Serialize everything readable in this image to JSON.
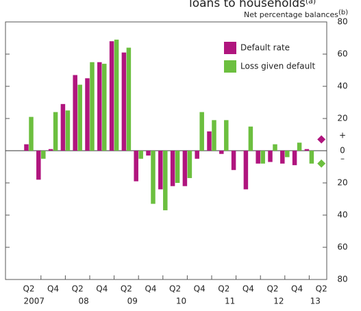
{
  "chart_data": {
    "type": "bar",
    "title": "loans to households",
    "title_note": "(a)",
    "y_label": "Net percentage balances",
    "y_label_note": "(b)",
    "sign_labels": [
      "+",
      "–"
    ],
    "categories": [
      "Q2",
      null,
      "Q4",
      null,
      "Q2",
      null,
      "Q4",
      null,
      "Q2",
      null,
      "Q4",
      null,
      "Q2",
      null,
      "Q4",
      null,
      "Q2",
      null,
      "Q4",
      null,
      "Q2",
      null,
      "Q4",
      null,
      "Q2"
    ],
    "x_groups": [
      {
        "label": "2007",
        "span": 3
      },
      {
        "label": "08",
        "span": 4
      },
      {
        "label": "09",
        "span": 4
      },
      {
        "label": "10",
        "span": 4
      },
      {
        "label": "11",
        "span": 4
      },
      {
        "label": "12",
        "span": 4
      },
      {
        "label": "13",
        "span": 2
      }
    ],
    "series": [
      {
        "name": "Default rate",
        "color": "#b0157e",
        "values": [
          4,
          -18,
          1,
          29,
          47,
          45,
          55,
          68,
          61,
          -19,
          -3,
          -24,
          -22,
          -22,
          -5,
          12,
          -2,
          -12,
          -24,
          -8,
          -7,
          -8,
          -9,
          1,
          7
        ]
      },
      {
        "name": "Loss given default",
        "color": "#6cbf3f",
        "values": [
          21,
          -5,
          24,
          25,
          41,
          55,
          54,
          69,
          64,
          -5,
          -33,
          -37,
          -20,
          -17,
          24,
          19,
          19,
          0,
          15,
          -8,
          4,
          -4,
          5,
          -8,
          -8
        ]
      }
    ],
    "last_point_style": "diamond",
    "ylim": [
      -80,
      80
    ],
    "yticks": [
      {
        "value": -80,
        "label": "80"
      },
      {
        "value": -60,
        "label": "60"
      },
      {
        "value": -40,
        "label": "40"
      },
      {
        "value": -20,
        "label": "20"
      },
      0,
      20,
      40,
      60,
      80
    ],
    "grid": false,
    "legend": "top-right"
  }
}
